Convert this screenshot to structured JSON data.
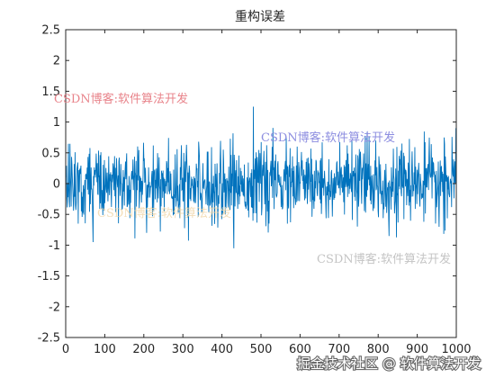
{
  "chart_data": {
    "type": "line",
    "title": "重构误差",
    "xlabel": "",
    "ylabel": "",
    "xlim": [
      0,
      1000
    ],
    "ylim": [
      -2.5,
      2.5
    ],
    "x_ticks": [
      "0",
      "100",
      "200",
      "300",
      "400",
      "500",
      "600",
      "700",
      "800",
      "900",
      "1000"
    ],
    "y_ticks": [
      "2.5",
      "2",
      "1.5",
      "1",
      "0.5",
      "0",
      "-0.5",
      "-1",
      "-1.5",
      "-2",
      "-2.5"
    ],
    "grid": false,
    "series": [
      {
        "num_points": 1000,
        "approx_mean": 0,
        "approx_std": 0.3,
        "approx_range": [
          -1.05,
          1.25
        ]
      }
    ]
  },
  "colors": {
    "series_line": "#0072BD",
    "axes": "#262626",
    "watermark_red": "#e8838a",
    "watermark_blue": "#8d8ee0",
    "watermark_gray": "#c4c4c4",
    "watermark_orange": "#f0d6a8"
  },
  "watermarks": {
    "top_left": "CSDN博客:软件算法开发",
    "center": "CSDN博客:软件算法开发",
    "lower_left": "CSDN博客:软件算法开发",
    "lower_right": "CSDN博客:软件算法开发",
    "footer": "掘金技术社区 @ 软件算法开发"
  }
}
